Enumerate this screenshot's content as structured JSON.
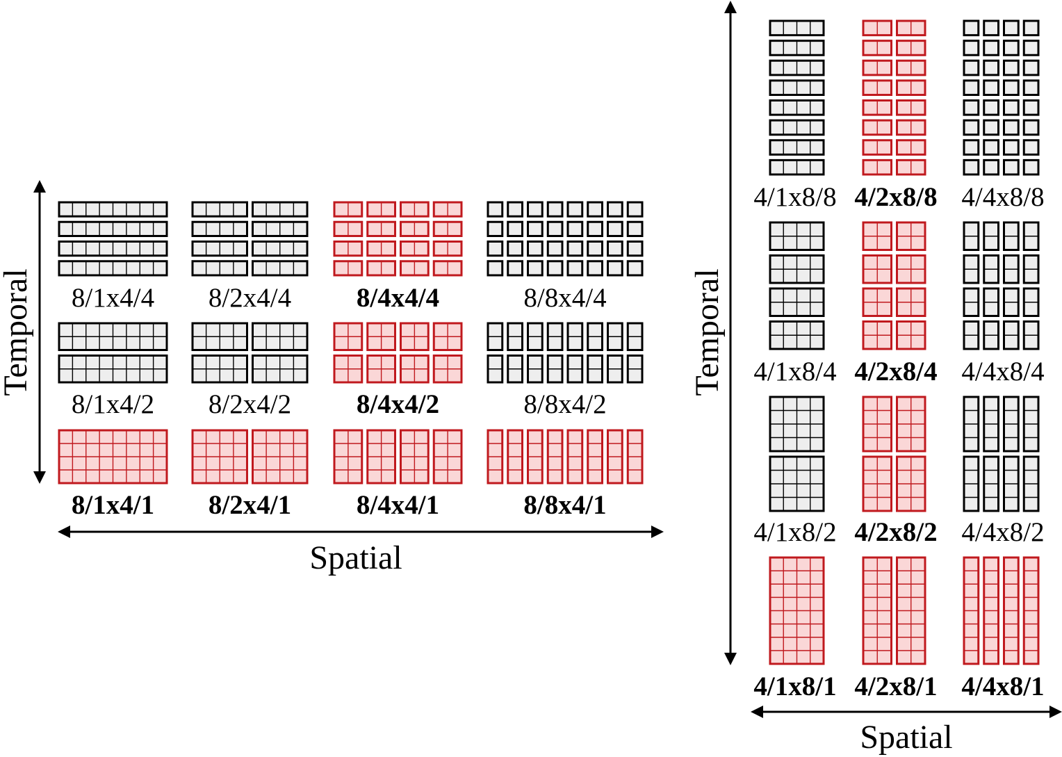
{
  "colors": {
    "highlight_stroke": "#c0191e",
    "highlight_fill": "#fad7d7",
    "normal_stroke": "#000000",
    "normal_fill": "#eeeeee"
  },
  "left_panel": {
    "x_axis_label": "Spatial",
    "y_axis_label": "Temporal",
    "rows": [
      [
        {
          "label": "8/1x4/4",
          "bold": false,
          "highlighted": false,
          "groups_x": 1,
          "groups_y": 4,
          "cell_cols": 8,
          "cell_rows": 1
        },
        {
          "label": "8/2x4/4",
          "bold": false,
          "highlighted": false,
          "groups_x": 2,
          "groups_y": 4,
          "cell_cols": 4,
          "cell_rows": 1
        },
        {
          "label": "8/4x4/4",
          "bold": true,
          "highlighted": true,
          "groups_x": 4,
          "groups_y": 4,
          "cell_cols": 2,
          "cell_rows": 1
        },
        {
          "label": "8/8x4/4",
          "bold": false,
          "highlighted": false,
          "groups_x": 8,
          "groups_y": 4,
          "cell_cols": 1,
          "cell_rows": 1
        }
      ],
      [
        {
          "label": "8/1x4/2",
          "bold": false,
          "highlighted": false,
          "groups_x": 1,
          "groups_y": 2,
          "cell_cols": 8,
          "cell_rows": 2
        },
        {
          "label": "8/2x4/2",
          "bold": false,
          "highlighted": false,
          "groups_x": 2,
          "groups_y": 2,
          "cell_cols": 4,
          "cell_rows": 2
        },
        {
          "label": "8/4x4/2",
          "bold": true,
          "highlighted": true,
          "groups_x": 4,
          "groups_y": 2,
          "cell_cols": 2,
          "cell_rows": 2
        },
        {
          "label": "8/8x4/2",
          "bold": false,
          "highlighted": false,
          "groups_x": 8,
          "groups_y": 2,
          "cell_cols": 1,
          "cell_rows": 2
        }
      ],
      [
        {
          "label": "8/1x4/1",
          "bold": true,
          "highlighted": true,
          "groups_x": 1,
          "groups_y": 1,
          "cell_cols": 8,
          "cell_rows": 4
        },
        {
          "label": "8/2x4/1",
          "bold": true,
          "highlighted": true,
          "groups_x": 2,
          "groups_y": 1,
          "cell_cols": 4,
          "cell_rows": 4
        },
        {
          "label": "8/4x4/1",
          "bold": true,
          "highlighted": true,
          "groups_x": 4,
          "groups_y": 1,
          "cell_cols": 2,
          "cell_rows": 4
        },
        {
          "label": "8/8x4/1",
          "bold": true,
          "highlighted": true,
          "groups_x": 8,
          "groups_y": 1,
          "cell_cols": 1,
          "cell_rows": 4
        }
      ]
    ]
  },
  "right_panel": {
    "x_axis_label": "Spatial",
    "y_axis_label": "Temporal",
    "rows": [
      [
        {
          "label": "4/1x8/8",
          "bold": false,
          "highlighted": false,
          "groups_x": 1,
          "groups_y": 8,
          "cell_cols": 4,
          "cell_rows": 1
        },
        {
          "label": "4/2x8/8",
          "bold": true,
          "highlighted": true,
          "groups_x": 2,
          "groups_y": 8,
          "cell_cols": 2,
          "cell_rows": 1
        },
        {
          "label": "4/4x8/8",
          "bold": false,
          "highlighted": false,
          "groups_x": 4,
          "groups_y": 8,
          "cell_cols": 1,
          "cell_rows": 1
        }
      ],
      [
        {
          "label": "4/1x8/4",
          "bold": false,
          "highlighted": false,
          "groups_x": 1,
          "groups_y": 4,
          "cell_cols": 4,
          "cell_rows": 2
        },
        {
          "label": "4/2x8/4",
          "bold": true,
          "highlighted": true,
          "groups_x": 2,
          "groups_y": 4,
          "cell_cols": 2,
          "cell_rows": 2
        },
        {
          "label": "4/4x8/4",
          "bold": false,
          "highlighted": false,
          "groups_x": 4,
          "groups_y": 4,
          "cell_cols": 1,
          "cell_rows": 2
        }
      ],
      [
        {
          "label": "4/1x8/2",
          "bold": false,
          "highlighted": false,
          "groups_x": 1,
          "groups_y": 2,
          "cell_cols": 4,
          "cell_rows": 4
        },
        {
          "label": "4/2x8/2",
          "bold": true,
          "highlighted": true,
          "groups_x": 2,
          "groups_y": 2,
          "cell_cols": 2,
          "cell_rows": 4
        },
        {
          "label": "4/4x8/2",
          "bold": false,
          "highlighted": false,
          "groups_x": 4,
          "groups_y": 2,
          "cell_cols": 1,
          "cell_rows": 4
        }
      ],
      [
        {
          "label": "4/1x8/1",
          "bold": true,
          "highlighted": true,
          "groups_x": 1,
          "groups_y": 1,
          "cell_cols": 4,
          "cell_rows": 8
        },
        {
          "label": "4/2x8/1",
          "bold": true,
          "highlighted": true,
          "groups_x": 2,
          "groups_y": 1,
          "cell_cols": 2,
          "cell_rows": 8
        },
        {
          "label": "4/4x8/1",
          "bold": true,
          "highlighted": true,
          "groups_x": 4,
          "groups_y": 1,
          "cell_cols": 1,
          "cell_rows": 8
        }
      ]
    ]
  }
}
